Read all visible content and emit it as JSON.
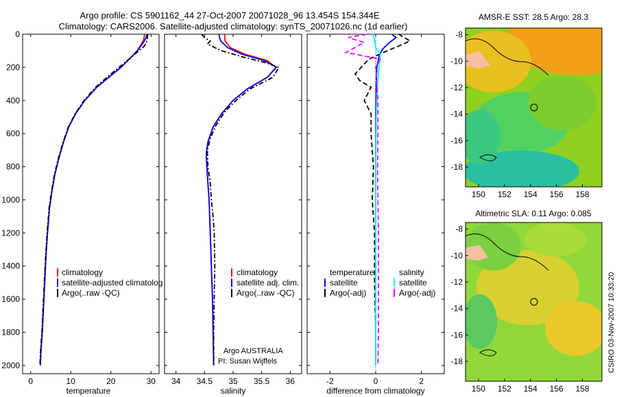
{
  "header": {
    "line1": "Argo profile: CS 5901162_44 27-Oct-2007 20071028_96 13.454S 154.344E",
    "line2": "Climatology: CARS2006. Satellite-adjusted climatology: synTS_20071026.nc (1d earlier)"
  },
  "colors": {
    "climatology": "#ff0000",
    "satellite": "#0000ff",
    "argo": "#000000",
    "sal_sat": "#00ffff",
    "sal_argo": "#ff00ff"
  },
  "chart_data": [
    {
      "type": "line",
      "id": "temperature",
      "xlabel": "temperature",
      "ylabel": "",
      "xlim": [
        -2,
        32
      ],
      "ylim": [
        0,
        2050
      ],
      "y_reversed": true,
      "xticks": [
        0,
        10,
        20,
        30
      ],
      "yticks": [
        0,
        200,
        400,
        600,
        800,
        1000,
        1200,
        1400,
        1600,
        1800,
        2000
      ],
      "legend": [
        "climatology",
        "satellite-adjusted climatolog",
        "Argo(..raw -QC)"
      ],
      "series": [
        {
          "name": "climatology",
          "style": "solid",
          "color": "#ff0000",
          "points": [
            [
              28.4,
              0
            ],
            [
              28.2,
              30
            ],
            [
              27.6,
              60
            ],
            [
              26.5,
              100
            ],
            [
              25,
              140
            ],
            [
              22.5,
              200
            ],
            [
              19.5,
              260
            ],
            [
              16.5,
              320
            ],
            [
              13.5,
              400
            ],
            [
              11.2,
              480
            ],
            [
              9.5,
              560
            ],
            [
              8.2,
              650
            ],
            [
              7,
              750
            ],
            [
              6,
              850
            ],
            [
              5.3,
              950
            ],
            [
              4.7,
              1050
            ],
            [
              4.2,
              1200
            ],
            [
              3.8,
              1350
            ],
            [
              3.5,
              1500
            ],
            [
              3.2,
              1650
            ],
            [
              2.9,
              1800
            ],
            [
              2.6,
              1900
            ],
            [
              2.4,
              2000
            ]
          ]
        },
        {
          "name": "satellite-adjusted climatology",
          "style": "solid",
          "color": "#0000ff",
          "points": [
            [
              29,
              0
            ],
            [
              28.6,
              30
            ],
            [
              27.8,
              60
            ],
            [
              26.6,
              100
            ],
            [
              25,
              140
            ],
            [
              22.5,
              200
            ],
            [
              19.5,
              260
            ],
            [
              16.5,
              320
            ],
            [
              13.5,
              400
            ],
            [
              11.2,
              480
            ],
            [
              9.5,
              560
            ],
            [
              8.2,
              650
            ],
            [
              7,
              750
            ],
            [
              6,
              850
            ],
            [
              5.3,
              950
            ],
            [
              4.7,
              1050
            ],
            [
              4.2,
              1200
            ],
            [
              3.8,
              1350
            ],
            [
              3.5,
              1500
            ],
            [
              3.2,
              1650
            ],
            [
              2.9,
              1800
            ],
            [
              2.6,
              1900
            ],
            [
              2.4,
              2000
            ]
          ]
        },
        {
          "name": "Argo(..raw -QC)",
          "style": "dashdot",
          "color": "#000000",
          "points": [
            [
              29.2,
              0
            ],
            [
              29,
              40
            ],
            [
              28.4,
              70
            ],
            [
              27,
              100
            ],
            [
              25,
              140
            ],
            [
              22,
              200
            ],
            [
              19,
              260
            ],
            [
              16.2,
              320
            ],
            [
              13.3,
              400
            ],
            [
              11.1,
              480
            ],
            [
              9.4,
              560
            ],
            [
              8.1,
              650
            ],
            [
              6.9,
              750
            ],
            [
              5.9,
              850
            ],
            [
              5.2,
              950
            ],
            [
              4.6,
              1050
            ],
            [
              4.1,
              1200
            ],
            [
              3.7,
              1350
            ],
            [
              3.4,
              1500
            ],
            [
              3.1,
              1650
            ],
            [
              2.8,
              1800
            ],
            [
              2.5,
              1900
            ],
            [
              2.3,
              2000
            ]
          ]
        }
      ]
    },
    {
      "type": "line",
      "id": "salinity",
      "xlabel": "salinity",
      "ylabel": "",
      "xlim": [
        33.8,
        36.2
      ],
      "ylim": [
        0,
        2050
      ],
      "y_reversed": true,
      "xticks": [
        34,
        34.5,
        35,
        35.5,
        36
      ],
      "legend": [
        "climatology",
        "satellite adj. clim.",
        "Argo(..raw -QC)"
      ],
      "annotation": [
        "Argo AUSTRALIA",
        "PI: Susan Wijffels"
      ],
      "series": [
        {
          "name": "climatology",
          "style": "solid",
          "color": "#ff0000",
          "points": [
            [
              34.85,
              0
            ],
            [
              34.86,
              40
            ],
            [
              34.95,
              80
            ],
            [
              35.2,
              120
            ],
            [
              35.6,
              160
            ],
            [
              35.75,
              200
            ],
            [
              35.6,
              260
            ],
            [
              35.25,
              330
            ],
            [
              35,
              400
            ],
            [
              34.8,
              480
            ],
            [
              34.65,
              560
            ],
            [
              34.56,
              650
            ],
            [
              34.53,
              720
            ],
            [
              34.54,
              800
            ],
            [
              34.56,
              900
            ],
            [
              34.58,
              1000
            ],
            [
              34.6,
              1200
            ],
            [
              34.62,
              1400
            ],
            [
              34.64,
              1600
            ],
            [
              34.65,
              1800
            ],
            [
              34.66,
              2000
            ]
          ]
        },
        {
          "name": "satellite adj. clim.",
          "style": "solid",
          "color": "#0000ff",
          "points": [
            [
              34.75,
              0
            ],
            [
              34.78,
              40
            ],
            [
              34.9,
              80
            ],
            [
              35.15,
              120
            ],
            [
              35.55,
              160
            ],
            [
              35.76,
              200
            ],
            [
              35.6,
              260
            ],
            [
              35.25,
              330
            ],
            [
              35,
              400
            ],
            [
              34.8,
              480
            ],
            [
              34.65,
              560
            ],
            [
              34.56,
              650
            ],
            [
              34.53,
              720
            ],
            [
              34.54,
              800
            ],
            [
              34.56,
              900
            ],
            [
              34.58,
              1000
            ],
            [
              34.6,
              1200
            ],
            [
              34.62,
              1400
            ],
            [
              34.64,
              1600
            ],
            [
              34.65,
              1800
            ],
            [
              34.66,
              2000
            ]
          ]
        },
        {
          "name": "Argo(..raw -QC)",
          "style": "dashdot",
          "color": "#000000",
          "points": [
            [
              34.45,
              0
            ],
            [
              34.5,
              20
            ],
            [
              34.6,
              40
            ],
            [
              34.55,
              60
            ],
            [
              34.8,
              100
            ],
            [
              35.2,
              140
            ],
            [
              35.55,
              170
            ],
            [
              35.8,
              200
            ],
            [
              35.7,
              260
            ],
            [
              35.3,
              330
            ],
            [
              35.05,
              400
            ],
            [
              34.85,
              470
            ],
            [
              34.7,
              550
            ],
            [
              34.6,
              630
            ],
            [
              34.55,
              700
            ],
            [
              34.56,
              800
            ],
            [
              34.6,
              900
            ],
            [
              34.62,
              1000
            ],
            [
              34.65,
              1100
            ],
            [
              34.67,
              1200
            ],
            [
              34.68,
              1400
            ],
            [
              34.67,
              1600
            ],
            [
              34.66,
              1800
            ],
            [
              34.66,
              2000
            ]
          ]
        }
      ]
    },
    {
      "type": "line",
      "id": "difference",
      "xlabel": "difference from climatology",
      "ylabel": "",
      "xlim": [
        -3,
        3
      ],
      "ylim": [
        0,
        2050
      ],
      "y_reversed": true,
      "xticks": [
        -2,
        0,
        2
      ],
      "legend_left_title": "temperature",
      "legend_right_title": "salinity",
      "legend": [
        "satellite",
        "Argo(-adj)",
        "satellite",
        "Argo(-adj)"
      ],
      "series": [
        {
          "name": "temperature satellite",
          "style": "solid",
          "color": "#0000ff",
          "points": [
            [
              0.7,
              0
            ],
            [
              0.9,
              20
            ],
            [
              0.6,
              50
            ],
            [
              0.3,
              90
            ],
            [
              0.15,
              130
            ],
            [
              0.05,
              200
            ],
            [
              0.02,
              300
            ],
            [
              0,
              500
            ],
            [
              0,
              800
            ],
            [
              0,
              1200
            ],
            [
              0,
              1600
            ],
            [
              0,
              2000
            ]
          ]
        },
        {
          "name": "temperature Argo(-adj)",
          "style": "dashed",
          "color": "#000000",
          "points": [
            [
              1.0,
              0
            ],
            [
              1.5,
              40
            ],
            [
              1.2,
              60
            ],
            [
              0.5,
              100
            ],
            [
              -0.3,
              150
            ],
            [
              -0.9,
              240
            ],
            [
              -0.7,
              280
            ],
            [
              -0.2,
              320
            ],
            [
              -0.5,
              400
            ],
            [
              -0.2,
              480
            ],
            [
              -0.2,
              600
            ],
            [
              -0.1,
              800
            ],
            [
              -0.15,
              1000
            ],
            [
              -0.05,
              1200
            ],
            [
              -0.05,
              1500
            ],
            [
              0,
              1800
            ],
            [
              0,
              2000
            ]
          ]
        },
        {
          "name": "salinity satellite",
          "style": "solid",
          "color": "#00ffff",
          "points": [
            [
              -0.1,
              0
            ],
            [
              -0.05,
              40
            ],
            [
              0,
              80
            ],
            [
              0.2,
              120
            ],
            [
              0.15,
              200
            ],
            [
              0.08,
              300
            ],
            [
              0.02,
              500
            ],
            [
              0,
              800
            ],
            [
              0,
              1200
            ],
            [
              0,
              1600
            ],
            [
              0,
              2000
            ]
          ]
        },
        {
          "name": "salinity Argo(-adj)",
          "style": "dashed",
          "color": "#ff00ff",
          "points": [
            [
              -0.4,
              0
            ],
            [
              -1.2,
              20
            ],
            [
              -0.5,
              50
            ],
            [
              -1.3,
              110
            ],
            [
              0.2,
              150
            ],
            [
              0,
              200
            ],
            [
              0.05,
              300
            ],
            [
              0.1,
              400
            ],
            [
              0.1,
              600
            ],
            [
              0.08,
              800
            ],
            [
              0.1,
              1000
            ],
            [
              0.12,
              1200
            ],
            [
              0.12,
              1500
            ],
            [
              0.12,
              1800
            ],
            [
              0.1,
              2000
            ]
          ]
        }
      ]
    },
    {
      "type": "heatmap",
      "id": "sst-map",
      "title": "AMSR-E SST: 28.5 Argo: 28.3",
      "xticks": [
        "150",
        "152",
        "154",
        "156",
        "158"
      ],
      "yticks": [
        "-8",
        "-10",
        "-12",
        "-14",
        "-16",
        "-18"
      ],
      "xlim": [
        149,
        159.5
      ],
      "ylim": [
        -19.5,
        -7.5
      ],
      "marker": [
        154.344,
        -13.454
      ]
    },
    {
      "type": "heatmap",
      "id": "sla-map",
      "title": "Altimetric SLA: 0.11 Argo: 0.085",
      "xticks": [
        "150",
        "152",
        "154",
        "156",
        "158"
      ],
      "yticks": [
        "-8",
        "-10",
        "-12",
        "-14",
        "-16",
        "-18"
      ],
      "xlim": [
        149,
        159.5
      ],
      "ylim": [
        -19.5,
        -7.5
      ],
      "marker": [
        154.344,
        -13.454
      ]
    }
  ],
  "credit": "CSIRO 03-Nov-2007 10:33:20"
}
